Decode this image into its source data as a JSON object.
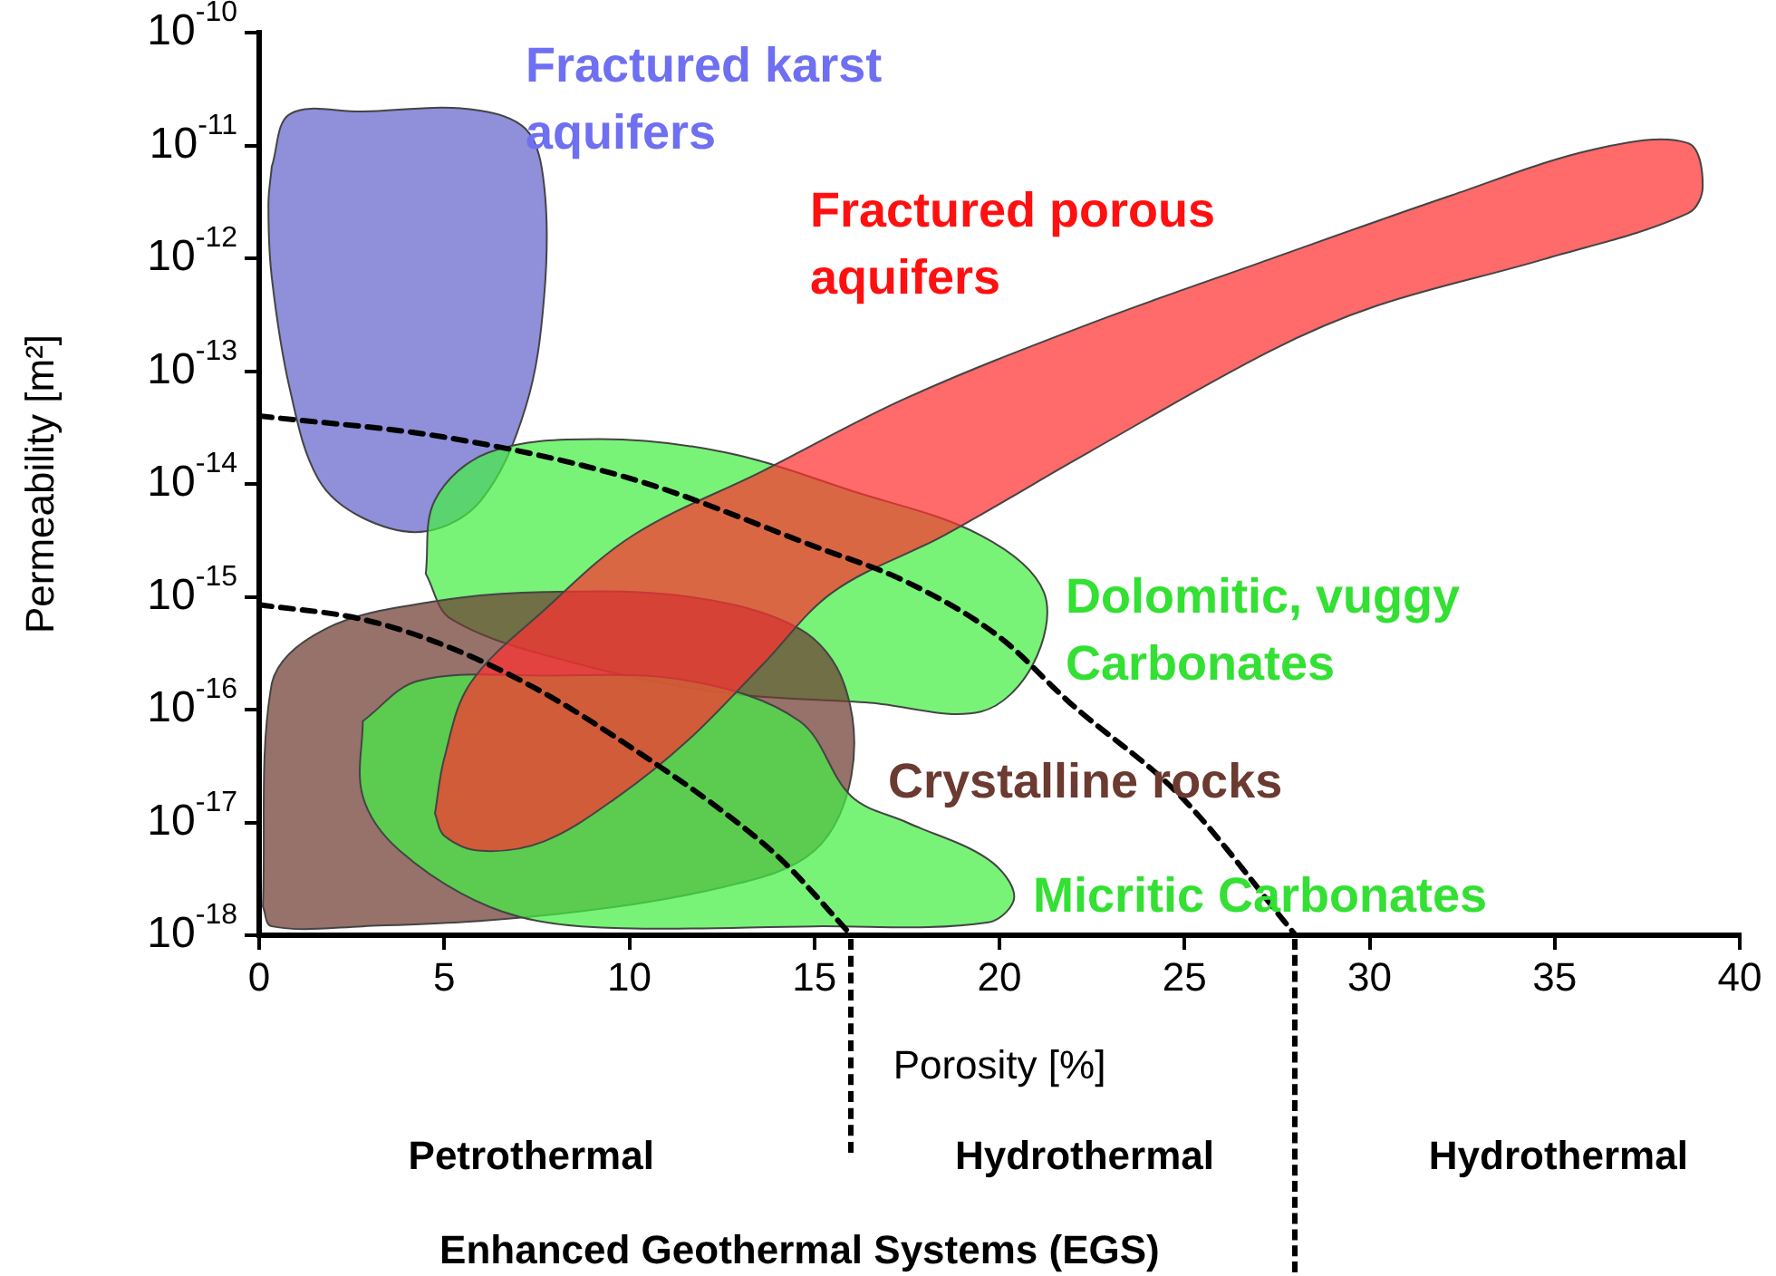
{
  "chart_data": {
    "type": "area",
    "xlabel": "Porosity [%]",
    "ylabel": "Permeability [m²]",
    "xlim": [
      0,
      40
    ],
    "xticks": [
      0,
      5,
      10,
      15,
      20,
      25,
      30,
      35,
      40
    ],
    "ylim": [
      1e-18,
      1e-10
    ],
    "log": "y",
    "yticks": [
      {
        "value": 1e-10,
        "label": "10$^{-10}$"
      },
      {
        "value": 1e-11,
        "label": "10$^{-11}$"
      },
      {
        "value": 1e-12,
        "label": "10$^{-12}$"
      },
      {
        "value": 1e-13,
        "label": "10$^{-13}$"
      },
      {
        "value": 1e-14,
        "label": "10$^{-14}$"
      },
      {
        "value": 1e-15,
        "label": "10$^{-15}$"
      },
      {
        "value": 1e-16,
        "label": "10$^{-16}$"
      },
      {
        "value": 1e-17,
        "label": "10$^{-17}$"
      },
      {
        "value": 1e-18,
        "label": "10$^{-18}$"
      }
    ],
    "series": [
      {
        "name": "Fractured karst aquifers",
        "color": "#6464cc",
        "x": [
          0.34,
          0.83,
          2.8,
          5.7,
          7.2,
          7.7,
          7.7,
          7.2,
          6.0,
          4.5,
          2.8,
          1.6,
          0.83,
          0.34,
          0.25
        ],
        "values": [
          6.5e-12,
          1.9e-11,
          2e-11,
          2.1e-11,
          1.4e-11,
          4.4e-12,
          4.6e-13,
          4.8e-14,
          7.2e-15,
          3.8e-15,
          5e-15,
          1.1e-14,
          6.9e-14,
          6.8e-13,
          3e-12
        ]
      },
      {
        "name": "Dolomitic, vuggy Carbonates",
        "color": "#44ee44",
        "x": [
          4.5,
          4.75,
          6.2,
          9.2,
          12.6,
          16.0,
          19.5,
          21.2,
          20.9,
          19.5,
          16.5,
          12.6,
          8.7,
          5.2
        ],
        "values": [
          1.6e-15,
          7.2e-15,
          1.9e-14,
          2.5e-14,
          1.9e-14,
          8.7e-15,
          3.5e-15,
          1.1e-15,
          2.5e-16,
          9.6e-17,
          1.15e-16,
          1.4e-16,
          2.5e-16,
          6.3e-16
        ]
      },
      {
        "name": "Crystalline rocks",
        "color": "#6e3c32",
        "x": [
          0.1,
          0.34,
          1.8,
          4.75,
          7.7,
          11.6,
          14.6,
          15.8,
          16.0,
          15.0,
          12.6,
          7.7,
          2.8,
          0.34
        ],
        "values": [
          1.8e-18,
          1.7e-16,
          5.2e-16,
          9.1e-16,
          1.1e-15,
          1e-15,
          5.2e-16,
          1.7e-16,
          2.6e-17,
          5.6e-18,
          2.7e-18,
          1.5e-18,
          1.2e-18,
          1.2e-18
        ]
      },
      {
        "name": "Micritic Carbonates",
        "color": "#44ee44",
        "x": [
          2.8,
          4.3,
          7.7,
          11.6,
          14.6,
          16.0,
          17.5,
          19.7,
          20.4,
          19.7,
          15.0,
          8.7,
          6.2,
          3.8,
          2.8
        ],
        "values": [
          7.9e-17,
          1.8e-16,
          2e-16,
          1.8e-16,
          7.9e-17,
          1.7e-17,
          1e-17,
          4.7e-18,
          2.2e-18,
          1.3e-18,
          1.2e-18,
          1.2e-18,
          1.8e-18,
          5.6e-18,
          1.7e-17
        ]
      },
      {
        "name": "Fractured porous aquifers",
        "color": "#ff3030",
        "x": [
          4.75,
          5.0,
          5.7,
          7.7,
          10.1,
          13.6,
          17.5,
          22.4,
          27.3,
          32.2,
          36.1,
          38.6,
          39.0,
          38.6,
          34.7,
          30.2,
          27.3,
          22.4,
          18.5,
          15.5,
          13.6,
          11.6,
          9.7,
          7.7,
          6.0,
          5.0
        ],
        "values": [
          1.2e-17,
          3.7e-17,
          1.7e-16,
          7.6e-16,
          3.5e-15,
          1.3e-14,
          5.8e-14,
          2.6e-13,
          9.8e-13,
          3.6e-12,
          9.3e-12,
          1.05e-11,
          4.4e-12,
          2.5e-12,
          9.8e-13,
          3.8e-13,
          1.5e-13,
          1.9e-14,
          3.5e-15,
          1.1e-15,
          2.5e-16,
          5.4e-17,
          1.7e-17,
          6.8e-18,
          5.6e-18,
          7.6e-18
        ]
      },
      {
        "type": "line",
        "color": "#000000",
        "line_style": "dashed",
        "x": [
          0,
          5.0,
          10.1,
          15.0,
          17.5,
          20.0,
          21.9,
          24.9,
          28.0
        ],
        "values": [
          4e-14,
          2.6e-14,
          1.1e-14,
          2.8e-15,
          1.35e-15,
          4.4e-16,
          1.15e-16,
          1.7e-17,
          1e-18
        ]
      },
      {
        "type": "line",
        "color": "#000000",
        "line_style": "dashed",
        "x": [
          0,
          2.8,
          5.2,
          7.7,
          10.1,
          12.6,
          14.1,
          16.0
        ],
        "values": [
          8.5e-16,
          6.3e-16,
          3.5e-16,
          1.4e-16,
          4.5e-17,
          1.2e-17,
          4.7e-18,
          1e-18
        ]
      }
    ],
    "marker": "none",
    "annotations": [
      "Petrothermal",
      "Hydrothermal",
      "Hydrothermal",
      "Enhanced Geothermal Systems (EGS)"
    ]
  }
}
